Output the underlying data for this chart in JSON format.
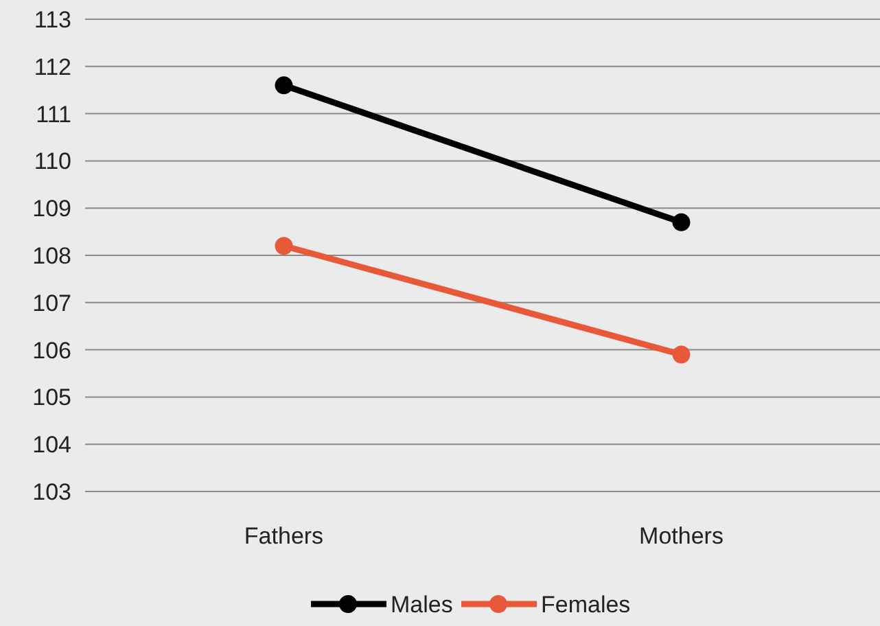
{
  "chart_data": {
    "type": "line",
    "categories": [
      "Fathers",
      "Mothers"
    ],
    "series": [
      {
        "name": "Males",
        "color": "#000000",
        "values": [
          111.6,
          108.7
        ]
      },
      {
        "name": "Females",
        "color": "#e8593a",
        "values": [
          108.2,
          105.9
        ]
      }
    ],
    "ylim": [
      103,
      113
    ],
    "yticks": [
      103,
      104,
      105,
      106,
      107,
      108,
      109,
      110,
      111,
      112,
      113
    ],
    "grid": "y",
    "legend": "bottom",
    "marker": "circle",
    "line_style": "solid"
  }
}
